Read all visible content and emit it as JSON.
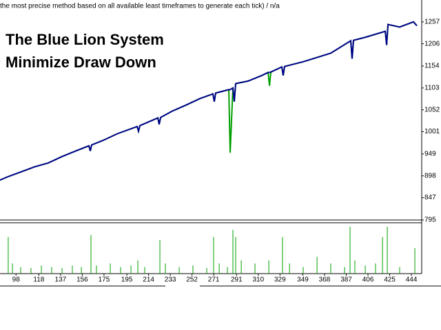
{
  "chart_data": [
    {
      "type": "line",
      "annotation": "the most precise method based on all available least timeframes to generate each tick) / n/a",
      "title": "The Blue Lion System",
      "subtitle": "Minimize Draw Down",
      "x": [
        84,
        90,
        102.1,
        114.2,
        126.2,
        138.3,
        150.3,
        161.8,
        163,
        164.2,
        174.5,
        186.5,
        204,
        205.2,
        206.4,
        222.1,
        223.3,
        224.5,
        234.8,
        246.8,
        258.9,
        270.3,
        271.5,
        272.7,
        284.2,
        285.4,
        287.8,
        289,
        290.2,
        301.1,
        313.1,
        318.6,
        319.8,
        321,
        330.6,
        331.8,
        333,
        349.3,
        361.4,
        373.4,
        390.9,
        392.1,
        393.3,
        403.6,
        421.1,
        422.3,
        423.5,
        433.7,
        445.8,
        448.8
      ],
      "series": [
        {
          "color": "#00a000",
          "values": [
            888,
            895,
            907,
            919,
            928,
            943,
            956,
            968,
            956,
            970,
            981,
            996,
            1013,
            1002,
            1015,
            1033,
            1018,
            1034,
            1049,
            1063,
            1078,
            1089,
            1071,
            1091,
            1099,
            952,
            1103,
            1071,
            1113,
            1119,
            1132,
            1139,
            1108,
            1140,
            1152,
            1132,
            1153,
            1164,
            1174,
            1184,
            1213,
            1171,
            1214,
            1221,
            1235,
            1203,
            1251,
            1245,
            1257,
            1248
          ]
        },
        {
          "color": "#00008b",
          "values": [
            888,
            895,
            907,
            919,
            928,
            943,
            956,
            968,
            956,
            970,
            981,
            996,
            1013,
            1002,
            1015,
            1033,
            1018,
            1034,
            1049,
            1063,
            1078,
            1089,
            1071,
            1091,
            1099,
            1099,
            1103,
            1071,
            1113,
            1119,
            1132,
            1139,
            1139,
            1140,
            1152,
            1132,
            1153,
            1164,
            1174,
            1184,
            1213,
            1171,
            1214,
            1221,
            1235,
            1203,
            1251,
            1245,
            1257,
            1248
          ]
        }
      ],
      "xlim": [
        84,
        453
      ],
      "ylim": [
        795,
        1308
      ],
      "xticks": [
        98,
        118,
        137,
        156,
        175,
        195,
        214,
        233,
        252,
        271,
        291,
        310,
        329,
        349,
        368,
        387,
        406,
        425,
        444
      ],
      "yticks": [
        1257,
        1206,
        1154,
        1103,
        1052,
        1001,
        949,
        898,
        847,
        795
      ]
    },
    {
      "type": "bar",
      "color": "#00a000",
      "x": [
        91.2,
        94.9,
        102.1,
        111.1,
        120.2,
        129.2,
        138.3,
        147.3,
        155.2,
        163.6,
        168.4,
        180.5,
        189.5,
        198.6,
        204.6,
        210.6,
        223.9,
        228.7,
        240.8,
        252.8,
        264.9,
        270.9,
        275.8,
        283,
        287.8,
        290.2,
        295.1,
        307.1,
        319.2,
        331.2,
        337.3,
        349.3,
        361.4,
        373.4,
        385.5,
        390.3,
        394.5,
        403.6,
        412.6,
        418.7,
        422.9,
        433.7,
        447
      ],
      "values": [
        72,
        20,
        13,
        11,
        16,
        13,
        11,
        16,
        13,
        76,
        16,
        20,
        13,
        16,
        26,
        13,
        66,
        20,
        13,
        16,
        11,
        72,
        20,
        13,
        86,
        72,
        26,
        20,
        26,
        72,
        20,
        13,
        33,
        20,
        13,
        92,
        26,
        16,
        20,
        72,
        92,
        13,
        50
      ],
      "xlim": [
        84,
        453
      ],
      "ylim": [
        0,
        100
      ]
    }
  ]
}
